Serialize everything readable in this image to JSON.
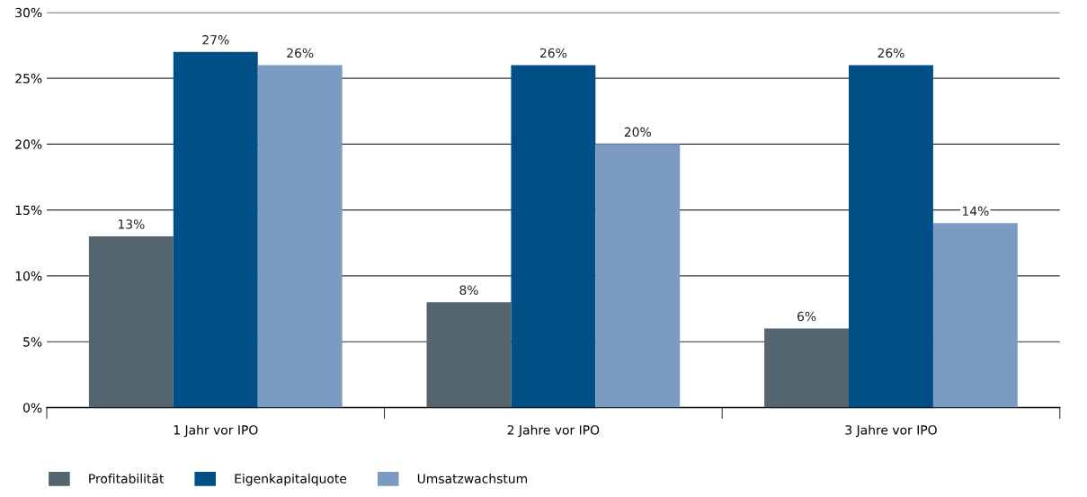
{
  "chart_data": {
    "type": "bar",
    "categories": [
      "1 Jahr vor IPO",
      "2 Jahre vor IPO",
      "3 Jahre vor IPO"
    ],
    "series": [
      {
        "name": "Profitabilität",
        "color": "#546570",
        "values": [
          13,
          8,
          6
        ],
        "value_labels": [
          "13%",
          "8%",
          "6%"
        ]
      },
      {
        "name": "Eigenkapitalquote",
        "color": "#004f86",
        "values": [
          27,
          26,
          26
        ],
        "value_labels": [
          "27%",
          "26%",
          "26%"
        ]
      },
      {
        "name": "Umsatzwachstum",
        "color": "#7b9bc2",
        "values": [
          26,
          20,
          14
        ],
        "value_labels": [
          "26%",
          "20%",
          "14%"
        ]
      }
    ],
    "ylim": [
      0,
      30
    ],
    "yticks": [
      {
        "value": 0,
        "label": "0%"
      },
      {
        "value": 5,
        "label": "5%"
      },
      {
        "value": 10,
        "label": "10%"
      },
      {
        "value": 15,
        "label": "15%"
      },
      {
        "value": 20,
        "label": "20%"
      },
      {
        "value": 25,
        "label": "25%"
      },
      {
        "value": 30,
        "label": "30%"
      }
    ],
    "grid": "y",
    "legend": "bottom left"
  }
}
